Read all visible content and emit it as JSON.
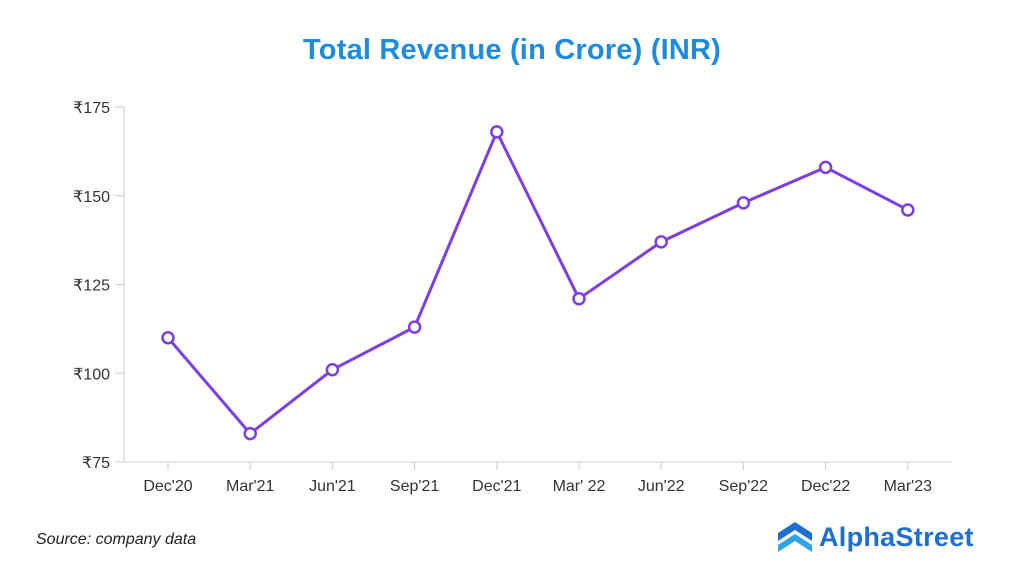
{
  "colors": {
    "title": "#1f8be0",
    "line": "#7b3fe4",
    "axis": "#cccccc",
    "brand": "#1f6fd1"
  },
  "chart_data": {
    "type": "line",
    "title": "Total Revenue (in Crore) (INR)",
    "xlabel": "",
    "ylabel": "",
    "categories": [
      "Dec'20",
      "Mar'21",
      "Jun'21",
      "Sep'21",
      "Dec'21",
      "Mar' 22",
      "Jun'22",
      "Sep'22",
      "Dec'22",
      "Mar'23"
    ],
    "series": [
      {
        "name": "Total Revenue",
        "values": [
          110,
          83,
          101,
          113,
          168,
          121,
          137,
          148,
          158,
          146
        ]
      }
    ],
    "ylim": [
      75,
      175
    ],
    "yticks": [
      75,
      100,
      125,
      150,
      175
    ],
    "ytick_labels": [
      "₹75",
      "₹100",
      "₹125",
      "₹150",
      "₹175"
    ],
    "grid": false,
    "legend": "none"
  },
  "footer": {
    "source": "Source: company data",
    "brand": "AlphaStreet",
    "brand_icon": "alphastreet-logo-icon"
  }
}
